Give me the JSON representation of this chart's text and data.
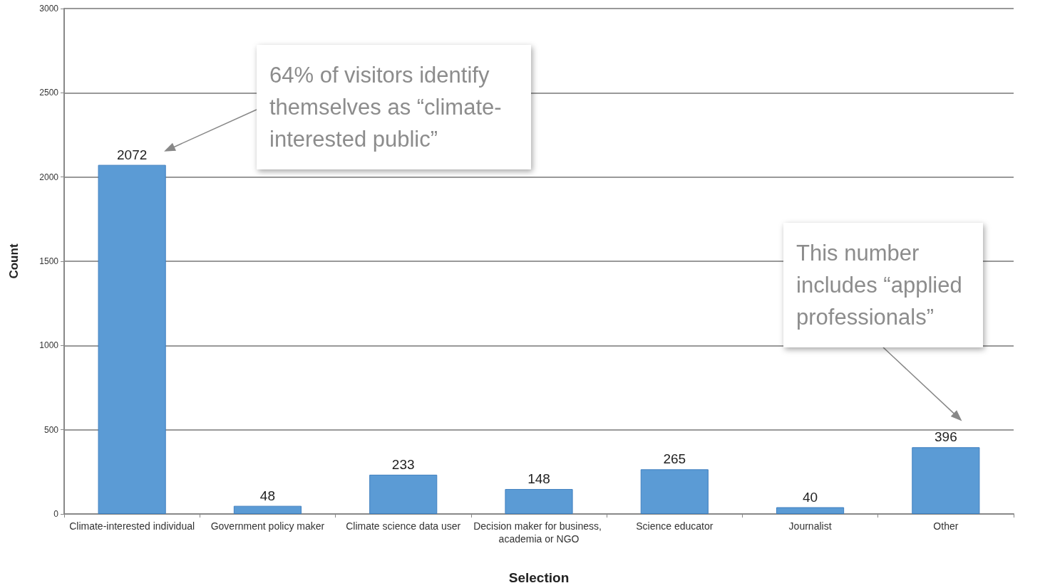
{
  "chart_data": {
    "type": "bar",
    "xlabel": "Selection",
    "ylabel": "Count",
    "categories": [
      "Climate-interested individual",
      "Government policy maker",
      "Climate science data user",
      "Decision maker for business, academia or NGO",
      "Science educator",
      "Journalist",
      "Other"
    ],
    "values": [
      2072,
      48,
      233,
      148,
      265,
      40,
      396
    ],
    "color": "#5b9bd5",
    "ylim": [
      0,
      3000
    ],
    "yticks": [
      0,
      500,
      1000,
      1500,
      2000,
      2500,
      3000
    ],
    "grid": "y",
    "data_labels": true,
    "annotations": [
      "64% of visitors identify themselves as “climate-interested public”",
      "This number includes “applied professionals”"
    ]
  }
}
